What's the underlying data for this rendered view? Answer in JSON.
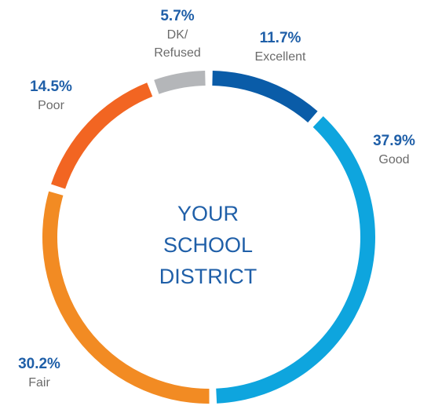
{
  "chart_data": {
    "type": "donut",
    "center_label": "YOUR\nSCHOOL\nDISTRICT",
    "categories": [
      "Excellent",
      "Good",
      "Fair",
      "Poor",
      "DK/\nRefused"
    ],
    "values": [
      11.7,
      37.9,
      30.2,
      14.5,
      5.7
    ],
    "value_labels": [
      "11.7%",
      "37.9%",
      "30.2%",
      "14.5%",
      "5.7%"
    ],
    "colors": [
      "#0a5ca8",
      "#0ea5de",
      "#f28b23",
      "#f26522",
      "#b4b6b9"
    ]
  }
}
